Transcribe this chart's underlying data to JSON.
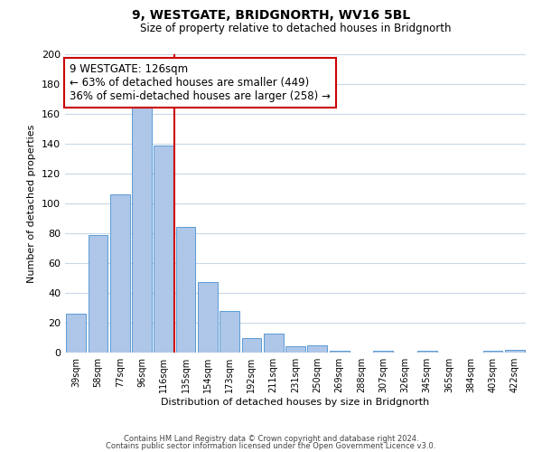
{
  "title": "9, WESTGATE, BRIDGNORTH, WV16 5BL",
  "subtitle": "Size of property relative to detached houses in Bridgnorth",
  "xlabel": "Distribution of detached houses by size in Bridgnorth",
  "ylabel": "Number of detached properties",
  "bar_color": "#aec6e8",
  "bar_edge_color": "#5b9bd5",
  "bin_labels": [
    "39sqm",
    "58sqm",
    "77sqm",
    "96sqm",
    "116sqm",
    "135sqm",
    "154sqm",
    "173sqm",
    "192sqm",
    "211sqm",
    "231sqm",
    "250sqm",
    "269sqm",
    "288sqm",
    "307sqm",
    "326sqm",
    "345sqm",
    "365sqm",
    "384sqm",
    "403sqm",
    "422sqm"
  ],
  "bar_heights": [
    26,
    79,
    106,
    166,
    139,
    84,
    47,
    28,
    10,
    13,
    4,
    5,
    1,
    0,
    1,
    0,
    1,
    0,
    0,
    1,
    2
  ],
  "ylim": [
    0,
    200
  ],
  "yticks": [
    0,
    20,
    40,
    60,
    80,
    100,
    120,
    140,
    160,
    180,
    200
  ],
  "vline_x": 4.5,
  "vline_color": "#cc0000",
  "annotation_title": "9 WESTGATE: 126sqm",
  "annotation_line1": "← 63% of detached houses are smaller (449)",
  "annotation_line2": "36% of semi-detached houses are larger (258) →",
  "annotation_box_color": "#ffffff",
  "annotation_box_edge": "#cc0000",
  "footnote1": "Contains HM Land Registry data © Crown copyright and database right 2024.",
  "footnote2": "Contains public sector information licensed under the Open Government Licence v3.0.",
  "background_color": "#ffffff",
  "grid_color": "#c8d8e8"
}
